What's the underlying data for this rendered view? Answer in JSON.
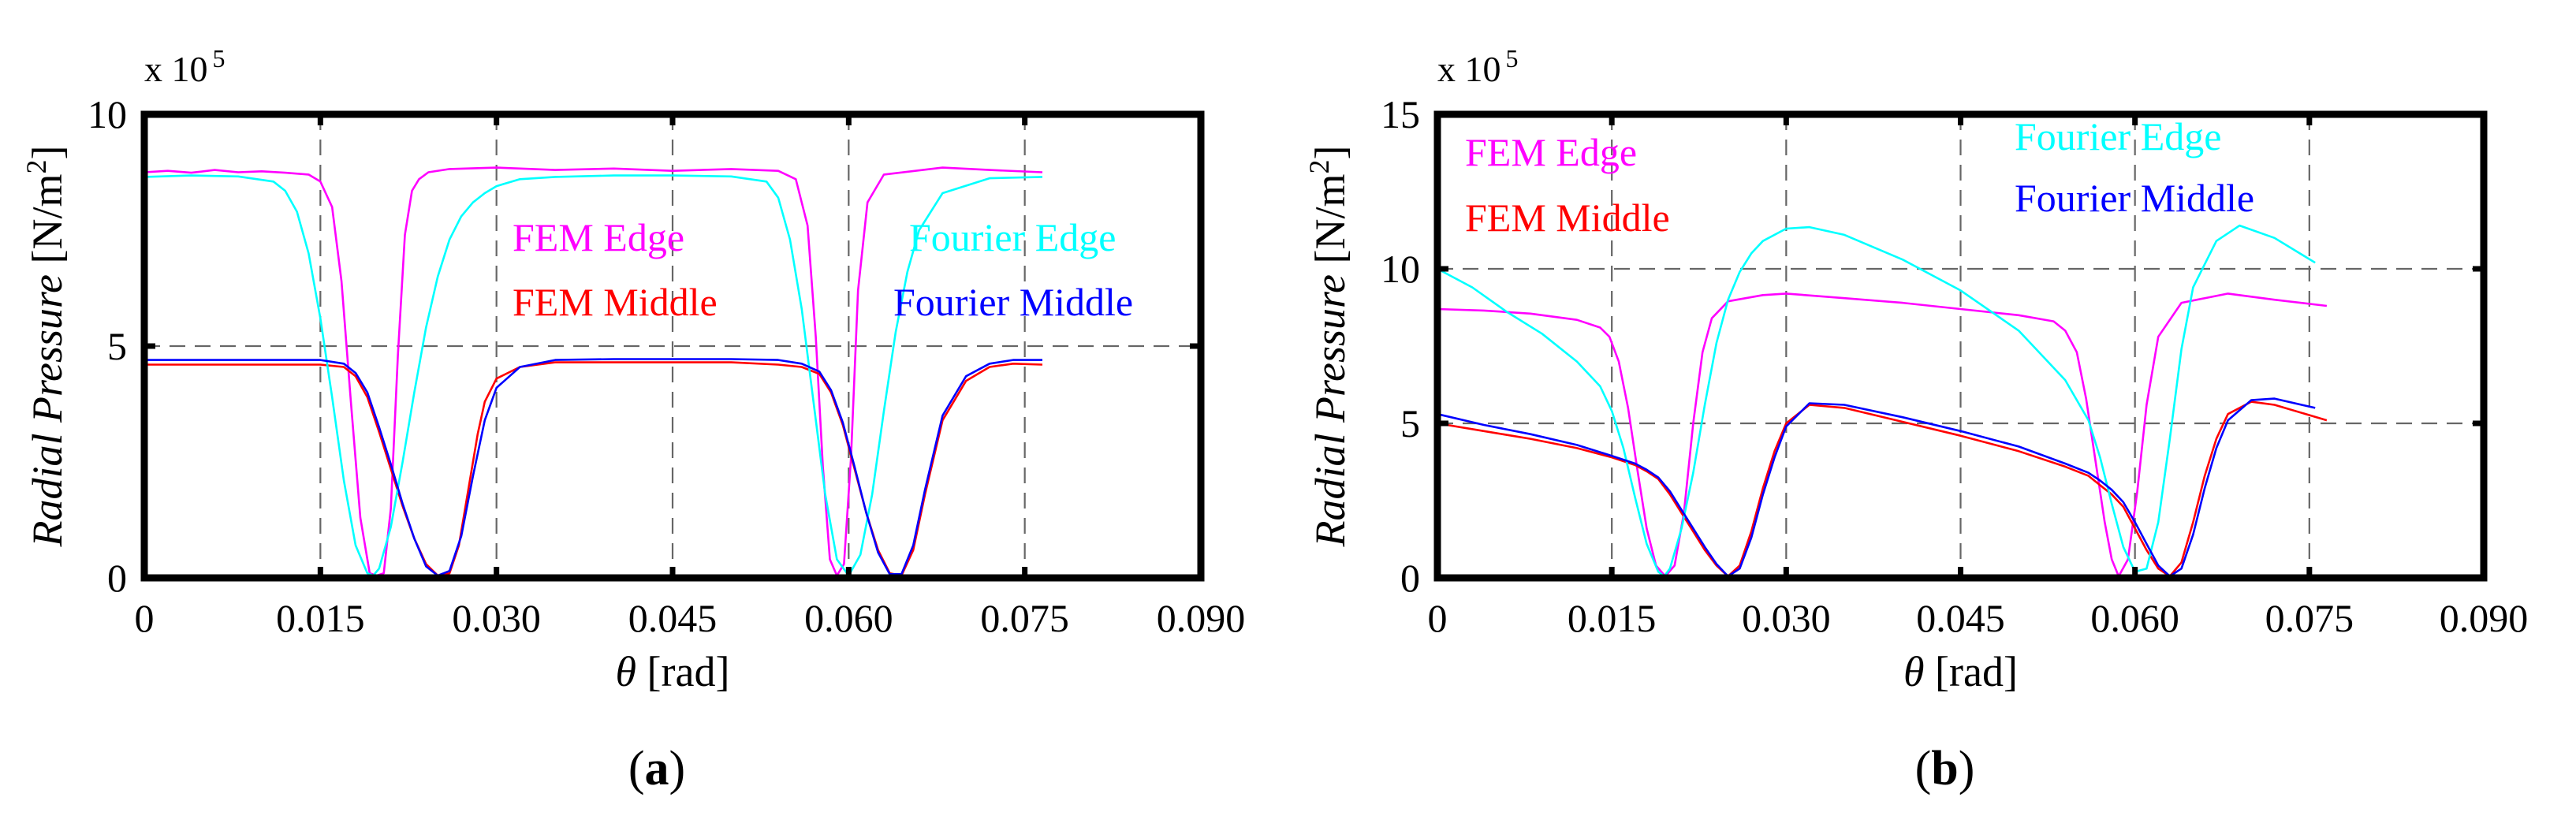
{
  "chart_data": [
    {
      "type": "line",
      "panel_label": "a",
      "xlabel_symbol": "θ",
      "xlabel_unit": " [rad]",
      "ylabel_main": "Radial Pressure",
      "ylabel_unit": " [N/m",
      "ylabel_unit_sup": "2",
      "ylabel_unit_end": "]",
      "exponent_base": "x 10",
      "exponent_power": "5",
      "xlim": [
        0,
        0.09
      ],
      "ylim": [
        0,
        10
      ],
      "xticks": [
        0,
        0.015,
        0.03,
        0.045,
        0.06,
        0.075,
        0.09
      ],
      "xtick_labels": [
        "0",
        "0.015",
        "0.030",
        "0.045",
        "0.060",
        "0.075",
        "0.090"
      ],
      "yticks": [
        0,
        5,
        10
      ],
      "ytick_labels": [
        "0",
        "5",
        "10"
      ],
      "grid": true,
      "series": [
        {
          "name": "FEM Edge",
          "color": "#ff00ff",
          "x": [
            0,
            0.002,
            0.004,
            0.006,
            0.008,
            0.01,
            0.012,
            0.014,
            0.015,
            0.016,
            0.0168,
            0.0176,
            0.0184,
            0.0192,
            0.0198,
            0.0204,
            0.021,
            0.0216,
            0.0222,
            0.0228,
            0.0234,
            0.0242,
            0.026,
            0.03,
            0.035,
            0.04,
            0.045,
            0.05,
            0.054,
            0.0555,
            0.0565,
            0.0572,
            0.0578,
            0.0584,
            0.059,
            0.0596,
            0.0602,
            0.0608,
            0.0616,
            0.063,
            0.068,
            0.072,
            0.0765
          ],
          "y": [
            8.75,
            8.78,
            8.74,
            8.8,
            8.75,
            8.77,
            8.74,
            8.7,
            8.55,
            8.0,
            6.4,
            3.8,
            1.3,
            0.1,
            0.05,
            0.1,
            1.5,
            4.8,
            7.4,
            8.35,
            8.6,
            8.75,
            8.82,
            8.85,
            8.8,
            8.83,
            8.78,
            8.82,
            8.78,
            8.6,
            7.6,
            5.2,
            2.4,
            0.4,
            0.05,
            0.3,
            2.6,
            6.2,
            8.1,
            8.7,
            8.85,
            8.8,
            8.75
          ]
        },
        {
          "name": "FEM Middle",
          "color": "#ff0000",
          "x": [
            0,
            0.005,
            0.01,
            0.015,
            0.017,
            0.018,
            0.019,
            0.02,
            0.021,
            0.022,
            0.023,
            0.024,
            0.025,
            0.026,
            0.0268,
            0.0276,
            0.0284,
            0.029,
            0.03,
            0.032,
            0.035,
            0.04,
            0.045,
            0.05,
            0.054,
            0.056,
            0.0575,
            0.0585,
            0.0595,
            0.0605,
            0.0615,
            0.0625,
            0.0635,
            0.0645,
            0.0655,
            0.0665,
            0.068,
            0.07,
            0.072,
            0.074,
            0.0765
          ],
          "y": [
            4.6,
            4.6,
            4.6,
            4.6,
            4.55,
            4.35,
            3.9,
            3.15,
            2.35,
            1.55,
            0.85,
            0.3,
            0.05,
            0.1,
            0.7,
            1.9,
            3.1,
            3.8,
            4.3,
            4.55,
            4.65,
            4.65,
            4.65,
            4.65,
            4.6,
            4.55,
            4.4,
            4.0,
            3.3,
            2.35,
            1.4,
            0.6,
            0.1,
            0.05,
            0.6,
            1.8,
            3.4,
            4.25,
            4.55,
            4.62,
            4.6
          ]
        },
        {
          "name": "Fourier Edge",
          "color": "#00ffff",
          "x": [
            0,
            0.004,
            0.008,
            0.011,
            0.012,
            0.013,
            0.014,
            0.015,
            0.016,
            0.017,
            0.018,
            0.019,
            0.0195,
            0.02,
            0.021,
            0.022,
            0.023,
            0.024,
            0.025,
            0.026,
            0.027,
            0.028,
            0.029,
            0.03,
            0.032,
            0.035,
            0.04,
            0.045,
            0.05,
            0.053,
            0.054,
            0.055,
            0.056,
            0.057,
            0.058,
            0.059,
            0.06,
            0.061,
            0.062,
            0.063,
            0.064,
            0.065,
            0.066,
            0.068,
            0.072,
            0.0765
          ],
          "y": [
            8.65,
            8.68,
            8.66,
            8.55,
            8.35,
            7.9,
            7.0,
            5.6,
            3.9,
            2.1,
            0.7,
            0.1,
            0.05,
            0.2,
            1.1,
            2.5,
            4.0,
            5.4,
            6.5,
            7.3,
            7.8,
            8.1,
            8.3,
            8.45,
            8.6,
            8.65,
            8.68,
            8.68,
            8.66,
            8.55,
            8.2,
            7.3,
            5.8,
            3.8,
            1.8,
            0.4,
            0.05,
            0.5,
            1.8,
            3.6,
            5.3,
            6.6,
            7.5,
            8.3,
            8.62,
            8.65
          ]
        },
        {
          "name": "Fourier Middle",
          "color": "#0000ff",
          "x": [
            0,
            0.005,
            0.01,
            0.015,
            0.017,
            0.018,
            0.019,
            0.02,
            0.021,
            0.022,
            0.023,
            0.024,
            0.025,
            0.026,
            0.027,
            0.028,
            0.029,
            0.03,
            0.032,
            0.035,
            0.04,
            0.045,
            0.05,
            0.054,
            0.056,
            0.0575,
            0.0585,
            0.0595,
            0.0605,
            0.0615,
            0.0625,
            0.0635,
            0.0645,
            0.0655,
            0.0665,
            0.068,
            0.07,
            0.072,
            0.074,
            0.0765
          ],
          "y": [
            4.7,
            4.7,
            4.7,
            4.7,
            4.62,
            4.42,
            4.0,
            3.25,
            2.45,
            1.6,
            0.85,
            0.25,
            0.05,
            0.15,
            0.9,
            2.2,
            3.4,
            4.1,
            4.55,
            4.7,
            4.72,
            4.72,
            4.72,
            4.7,
            4.62,
            4.45,
            4.05,
            3.35,
            2.4,
            1.4,
            0.55,
            0.08,
            0.08,
            0.7,
            1.9,
            3.5,
            4.35,
            4.62,
            4.7,
            4.7
          ]
        }
      ],
      "legend_labels": [
        {
          "text": "FEM Edge",
          "color": "#ff00ff"
        },
        {
          "text": "FEM Middle",
          "color": "#ff0000"
        },
        {
          "text": "Fourier Edge",
          "color": "#00ffff"
        },
        {
          "text": "Fourier Middle",
          "color": "#0000ff"
        }
      ]
    },
    {
      "type": "line",
      "panel_label": "b",
      "xlabel_symbol": "θ",
      "xlabel_unit": " [rad]",
      "ylabel_main": "Radial Pressure",
      "ylabel_unit": " [N/m",
      "ylabel_unit_sup": "2",
      "ylabel_unit_end": "]",
      "exponent_base": "x 10",
      "exponent_power": "5",
      "xlim": [
        0,
        0.09
      ],
      "ylim": [
        0,
        15
      ],
      "xticks": [
        0,
        0.015,
        0.03,
        0.045,
        0.06,
        0.075,
        0.09
      ],
      "xtick_labels": [
        "0",
        "0.015",
        "0.030",
        "0.045",
        "0.060",
        "0.075",
        "0.090"
      ],
      "yticks": [
        0,
        5,
        10,
        15
      ],
      "ytick_labels": [
        "0",
        "5",
        "10",
        "15"
      ],
      "grid": true,
      "series": [
        {
          "name": "FEM Edge",
          "color": "#ff00ff",
          "x": [
            0,
            0.004,
            0.008,
            0.012,
            0.014,
            0.0148,
            0.0156,
            0.0164,
            0.0172,
            0.018,
            0.0188,
            0.0196,
            0.0204,
            0.0212,
            0.022,
            0.0228,
            0.0236,
            0.025,
            0.028,
            0.03,
            0.035,
            0.04,
            0.045,
            0.05,
            0.053,
            0.054,
            0.055,
            0.0558,
            0.0566,
            0.0574,
            0.058,
            0.0586,
            0.0594,
            0.0602,
            0.061,
            0.062,
            0.064,
            0.068,
            0.072,
            0.0765
          ],
          "y": [
            8.7,
            8.65,
            8.55,
            8.35,
            8.1,
            7.8,
            7.0,
            5.5,
            3.5,
            1.6,
            0.4,
            0.05,
            0.4,
            2.1,
            5.0,
            7.3,
            8.4,
            8.95,
            9.15,
            9.2,
            9.05,
            8.9,
            8.7,
            8.5,
            8.3,
            8.0,
            7.3,
            5.8,
            3.8,
            1.8,
            0.6,
            0.05,
            0.6,
            2.8,
            5.6,
            7.8,
            8.9,
            9.2,
            9.0,
            8.8
          ]
        },
        {
          "name": "FEM Middle",
          "color": "#ff0000",
          "x": [
            0,
            0.004,
            0.008,
            0.012,
            0.015,
            0.017,
            0.018,
            0.019,
            0.02,
            0.021,
            0.022,
            0.023,
            0.024,
            0.025,
            0.026,
            0.027,
            0.028,
            0.029,
            0.03,
            0.032,
            0.035,
            0.04,
            0.045,
            0.05,
            0.054,
            0.056,
            0.057,
            0.058,
            0.059,
            0.06,
            0.061,
            0.062,
            0.063,
            0.064,
            0.065,
            0.066,
            0.067,
            0.068,
            0.07,
            0.072,
            0.0765
          ],
          "y": [
            5.0,
            4.75,
            4.5,
            4.2,
            3.9,
            3.65,
            3.45,
            3.2,
            2.7,
            2.1,
            1.5,
            0.9,
            0.4,
            0.05,
            0.4,
            1.5,
            2.9,
            4.1,
            5.0,
            5.6,
            5.5,
            5.05,
            4.6,
            4.1,
            3.6,
            3.3,
            3.0,
            2.7,
            2.3,
            1.6,
            0.9,
            0.3,
            0.05,
            0.5,
            1.8,
            3.3,
            4.5,
            5.3,
            5.7,
            5.6,
            5.1
          ]
        },
        {
          "name": "Fourier Edge",
          "color": "#00ffff",
          "x": [
            0,
            0.003,
            0.006,
            0.009,
            0.012,
            0.014,
            0.015,
            0.016,
            0.017,
            0.018,
            0.019,
            0.0195,
            0.02,
            0.021,
            0.022,
            0.023,
            0.024,
            0.025,
            0.026,
            0.027,
            0.028,
            0.03,
            0.032,
            0.035,
            0.04,
            0.045,
            0.05,
            0.054,
            0.056,
            0.057,
            0.058,
            0.059,
            0.06,
            0.061,
            0.062,
            0.063,
            0.064,
            0.065,
            0.067,
            0.069,
            0.072,
            0.0755
          ],
          "y": [
            10.0,
            9.4,
            8.6,
            7.9,
            7.0,
            6.2,
            5.4,
            4.2,
            2.6,
            1.1,
            0.2,
            0.05,
            0.3,
            1.6,
            3.4,
            5.6,
            7.6,
            9.0,
            9.9,
            10.5,
            10.9,
            11.3,
            11.35,
            11.1,
            10.3,
            9.3,
            8.0,
            6.4,
            5.1,
            3.9,
            2.4,
            1.0,
            0.2,
            0.3,
            1.8,
            4.5,
            7.4,
            9.4,
            10.9,
            11.4,
            11.0,
            10.2
          ]
        },
        {
          "name": "Fourier Middle",
          "color": "#0000ff",
          "x": [
            0,
            0.004,
            0.008,
            0.012,
            0.015,
            0.017,
            0.018,
            0.019,
            0.02,
            0.021,
            0.022,
            0.023,
            0.024,
            0.025,
            0.026,
            0.027,
            0.028,
            0.029,
            0.03,
            0.032,
            0.035,
            0.04,
            0.045,
            0.05,
            0.054,
            0.056,
            0.057,
            0.058,
            0.059,
            0.06,
            0.061,
            0.062,
            0.063,
            0.064,
            0.065,
            0.066,
            0.067,
            0.068,
            0.07,
            0.072,
            0.0755
          ],
          "y": [
            5.3,
            4.95,
            4.65,
            4.3,
            3.95,
            3.7,
            3.5,
            3.25,
            2.8,
            2.2,
            1.6,
            1.0,
            0.45,
            0.05,
            0.3,
            1.3,
            2.7,
            3.9,
            4.9,
            5.65,
            5.6,
            5.2,
            4.75,
            4.25,
            3.7,
            3.4,
            3.15,
            2.85,
            2.45,
            1.8,
            1.1,
            0.4,
            0.05,
            0.3,
            1.4,
            2.9,
            4.2,
            5.1,
            5.75,
            5.8,
            5.5
          ]
        }
      ],
      "legend_labels": [
        {
          "text": "FEM Edge",
          "color": "#ff00ff"
        },
        {
          "text": "FEM Middle",
          "color": "#ff0000"
        },
        {
          "text": "Fourier Edge",
          "color": "#00ffff"
        },
        {
          "text": "Fourier Middle",
          "color": "#0000ff"
        }
      ]
    }
  ]
}
